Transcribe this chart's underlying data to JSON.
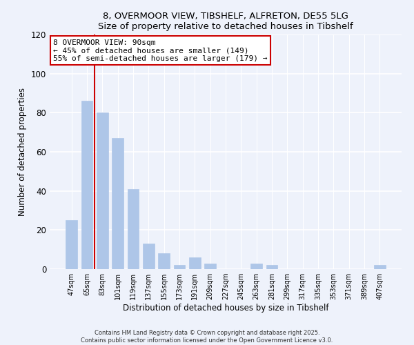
{
  "title_line1": "8, OVERMOOR VIEW, TIBSHELF, ALFRETON, DE55 5LG",
  "title_line2": "Size of property relative to detached houses in Tibshelf",
  "xlabel": "Distribution of detached houses by size in Tibshelf",
  "ylabel": "Number of detached properties",
  "bar_labels": [
    "47sqm",
    "65sqm",
    "83sqm",
    "101sqm",
    "119sqm",
    "137sqm",
    "155sqm",
    "173sqm",
    "191sqm",
    "209sqm",
    "227sqm",
    "245sqm",
    "263sqm",
    "281sqm",
    "299sqm",
    "317sqm",
    "335sqm",
    "353sqm",
    "371sqm",
    "389sqm",
    "407sqm"
  ],
  "bar_values": [
    25,
    86,
    80,
    67,
    41,
    13,
    8,
    2,
    6,
    3,
    0,
    0,
    3,
    2,
    0,
    0,
    0,
    0,
    0,
    0,
    2
  ],
  "bar_color": "#aec6e8",
  "bar_edge_color": "#aec6e8",
  "ref_line_color": "#cc0000",
  "annotation_title": "8 OVERMOOR VIEW: 90sqm",
  "annotation_line1": "← 45% of detached houses are smaller (149)",
  "annotation_line2": "55% of semi-detached houses are larger (179) →",
  "annotation_box_color": "white",
  "annotation_box_edge": "#cc0000",
  "ylim": [
    0,
    120
  ],
  "yticks": [
    0,
    20,
    40,
    60,
    80,
    100,
    120
  ],
  "footer_line1": "Contains HM Land Registry data © Crown copyright and database right 2025.",
  "footer_line2": "Contains public sector information licensed under the Open Government Licence v3.0.",
  "bg_color": "#eef2fb",
  "grid_color": "white"
}
